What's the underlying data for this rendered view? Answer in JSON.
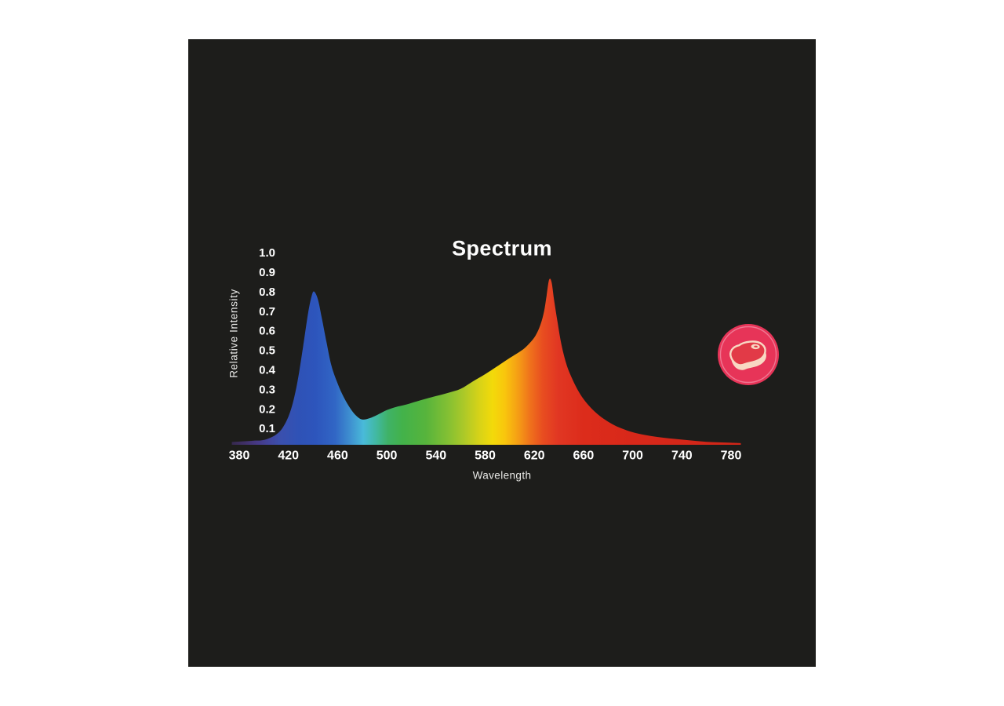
{
  "page": {
    "background_color": "#ffffff",
    "panel_color": "#1d1d1b"
  },
  "chart_data": {
    "type": "area",
    "title": "Spectrum",
    "xlabel": "Wavelength",
    "ylabel": "Relative Intensity",
    "grid": false,
    "legend": "none",
    "xlim": [
      374,
      788
    ],
    "ylim": [
      0,
      1.0
    ],
    "x_ticks": [
      {
        "label": "380",
        "value": 380
      },
      {
        "label": "420",
        "value": 420
      },
      {
        "label": "460",
        "value": 460
      },
      {
        "label": "500",
        "value": 500
      },
      {
        "label": "540",
        "value": 540
      },
      {
        "label": "580",
        "value": 580
      },
      {
        "label": "620",
        "value": 620
      },
      {
        "label": "660",
        "value": 660
      },
      {
        "label": "700",
        "value": 700
      },
      {
        "label": "740",
        "value": 740
      },
      {
        "label": "780",
        "value": 780
      }
    ],
    "y_ticks": [
      {
        "label": "1.0",
        "value": 1.0
      },
      {
        "label": "0.9",
        "value": 0.9
      },
      {
        "label": "0.8",
        "value": 0.8
      },
      {
        "label": "0.7",
        "value": 0.7
      },
      {
        "label": "0.6",
        "value": 0.6
      },
      {
        "label": "0.5",
        "value": 0.5
      },
      {
        "label": "0.4",
        "value": 0.4
      },
      {
        "label": "0.3",
        "value": 0.3
      },
      {
        "label": "0.2",
        "value": 0.2
      },
      {
        "label": "0.1",
        "value": 0.1
      }
    ],
    "peaks": [
      {
        "wavelength_nm": 441,
        "relative_intensity": 0.8,
        "band": "blue"
      },
      {
        "wavelength_nm": 632,
        "relative_intensity": 0.86,
        "band": "red"
      }
    ],
    "valley": {
      "wavelength_nm": 480,
      "relative_intensity": 0.14
    },
    "points": [
      [
        374,
        0.03
      ],
      [
        380,
        0.032
      ],
      [
        386,
        0.034
      ],
      [
        392,
        0.037
      ],
      [
        398,
        0.038
      ],
      [
        404,
        0.048
      ],
      [
        410,
        0.068
      ],
      [
        415,
        0.1
      ],
      [
        420,
        0.16
      ],
      [
        424,
        0.24
      ],
      [
        428,
        0.36
      ],
      [
        432,
        0.52
      ],
      [
        436,
        0.69
      ],
      [
        439,
        0.78
      ],
      [
        441,
        0.8
      ],
      [
        444,
        0.76
      ],
      [
        447,
        0.67
      ],
      [
        451,
        0.54
      ],
      [
        455,
        0.42
      ],
      [
        460,
        0.33
      ],
      [
        465,
        0.26
      ],
      [
        470,
        0.205
      ],
      [
        475,
        0.165
      ],
      [
        480,
        0.145
      ],
      [
        486,
        0.152
      ],
      [
        492,
        0.168
      ],
      [
        500,
        0.193
      ],
      [
        508,
        0.21
      ],
      [
        516,
        0.222
      ],
      [
        524,
        0.237
      ],
      [
        532,
        0.252
      ],
      [
        540,
        0.265
      ],
      [
        550,
        0.282
      ],
      [
        560,
        0.302
      ],
      [
        570,
        0.34
      ],
      [
        580,
        0.377
      ],
      [
        590,
        0.418
      ],
      [
        600,
        0.46
      ],
      [
        610,
        0.5
      ],
      [
        616,
        0.535
      ],
      [
        621,
        0.575
      ],
      [
        625,
        0.63
      ],
      [
        628,
        0.7
      ],
      [
        630,
        0.78
      ],
      [
        632,
        0.86
      ],
      [
        634,
        0.85
      ],
      [
        636,
        0.76
      ],
      [
        639,
        0.64
      ],
      [
        642,
        0.53
      ],
      [
        646,
        0.43
      ],
      [
        650,
        0.365
      ],
      [
        655,
        0.3
      ],
      [
        660,
        0.25
      ],
      [
        666,
        0.205
      ],
      [
        672,
        0.17
      ],
      [
        678,
        0.142
      ],
      [
        685,
        0.116
      ],
      [
        692,
        0.097
      ],
      [
        700,
        0.08
      ],
      [
        710,
        0.066
      ],
      [
        720,
        0.056
      ],
      [
        730,
        0.048
      ],
      [
        740,
        0.042
      ],
      [
        750,
        0.036
      ],
      [
        760,
        0.031
      ],
      [
        770,
        0.028
      ],
      [
        780,
        0.026
      ],
      [
        788,
        0.024
      ]
    ],
    "gradient_stops": [
      {
        "nm": 374,
        "color": "#36294e"
      },
      {
        "nm": 384,
        "color": "#3f2f66"
      },
      {
        "nm": 394,
        "color": "#463884"
      },
      {
        "nm": 404,
        "color": "#42449c"
      },
      {
        "nm": 414,
        "color": "#3a50ae"
      },
      {
        "nm": 428,
        "color": "#2f52b6"
      },
      {
        "nm": 442,
        "color": "#2d55bc"
      },
      {
        "nm": 458,
        "color": "#3166c5"
      },
      {
        "nm": 470,
        "color": "#3e8fd0"
      },
      {
        "nm": 481,
        "color": "#49bad9"
      },
      {
        "nm": 491,
        "color": "#42b9a4"
      },
      {
        "nm": 501,
        "color": "#3fb267"
      },
      {
        "nm": 513,
        "color": "#43b24a"
      },
      {
        "nm": 532,
        "color": "#57b43c"
      },
      {
        "nm": 550,
        "color": "#84c033"
      },
      {
        "nm": 563,
        "color": "#adc928"
      },
      {
        "nm": 576,
        "color": "#d9d317"
      },
      {
        "nm": 586,
        "color": "#f2da0a"
      },
      {
        "nm": 596,
        "color": "#f9c60d"
      },
      {
        "nm": 607,
        "color": "#f59d15"
      },
      {
        "nm": 617,
        "color": "#ef701c"
      },
      {
        "nm": 627,
        "color": "#e84d20"
      },
      {
        "nm": 639,
        "color": "#e13723"
      },
      {
        "nm": 660,
        "color": "#dc2c1b"
      },
      {
        "nm": 700,
        "color": "#d8281a"
      },
      {
        "nm": 788,
        "color": "#cf2518"
      }
    ]
  },
  "icon": {
    "semantic": "steak-badge-icon",
    "circle_color": "#e73458",
    "ring_color": "#f0849c",
    "meat_color": "#e23a47",
    "fat_color": "#f8d8c3"
  }
}
